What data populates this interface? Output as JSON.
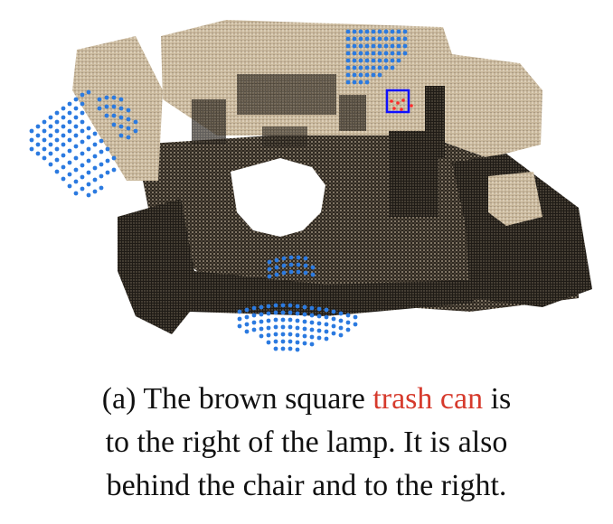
{
  "figure": {
    "colors": {
      "highlight_points": "#2b7ae0",
      "target_box": "#1010ff",
      "target_points": "#ff2a2a",
      "floor": "#3a3026",
      "walls": "#e6d9c4"
    }
  },
  "caption": {
    "prefix": "(a) The brown square ",
    "highlight": "trash can",
    "suffix": " is",
    "line2": "to the right of the lamp. It is also",
    "line3": "behind the chair and to the right.",
    "highlight_color": "#d63a2c"
  }
}
